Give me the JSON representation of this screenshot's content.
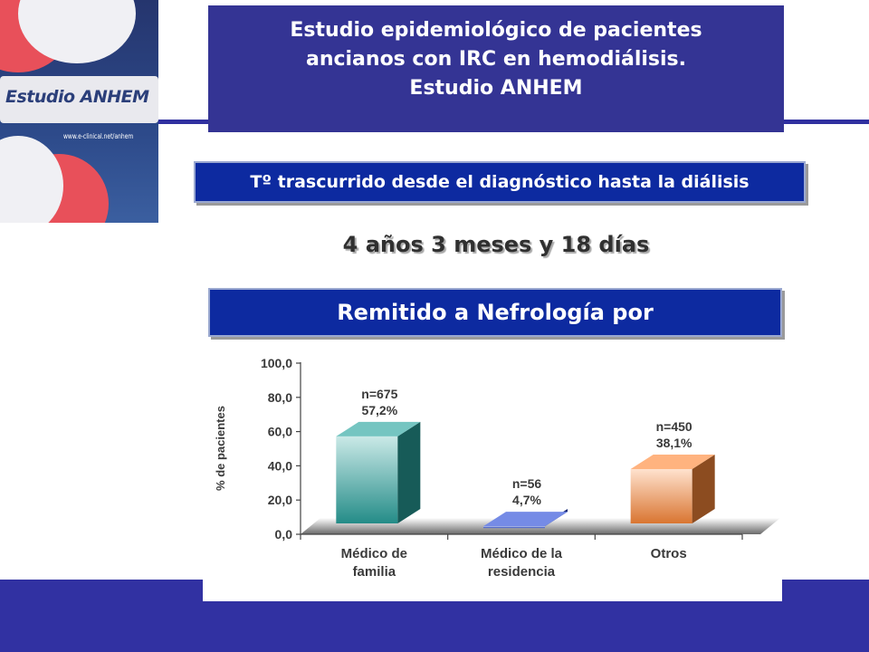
{
  "logo": {
    "title": "Estudio ANHEM",
    "url": "www.e-clinical.net/anhem"
  },
  "title": {
    "line1": "Estudio epidemiológico de pacientes",
    "line2": "ancianos con IRC en hemodiálisis.",
    "line3": "Estudio ANHEM"
  },
  "section1": {
    "header": "Tº trascurrido desde el diagnóstico hasta la diálisis",
    "value": "4 años 3 meses y 18 días"
  },
  "section2": {
    "header": "Remitido a Nefrología por"
  },
  "colors": {
    "title_bg": "#343494",
    "header_bg": "#0d2aa0",
    "footer_bg": "#3131a2"
  },
  "chart_data": {
    "type": "bar",
    "ylabel": "% de pacientes",
    "ylim": [
      0,
      100
    ],
    "yticks": [
      "100,0",
      "80,0",
      "60,0",
      "40,0",
      "20,0",
      "0,0"
    ],
    "categories": [
      [
        "Médico de",
        "familia"
      ],
      [
        "Médico de la",
        "residencia"
      ],
      [
        "Otros"
      ]
    ],
    "values": [
      57.2,
      4.7,
      38.1
    ],
    "counts": [
      "n=675",
      "n=56",
      "n=450"
    ],
    "value_labels": [
      "57,2%",
      "4,7%",
      "38,1%"
    ],
    "colors": [
      "#2aa5a0",
      "#2a4dd8",
      "#ff8a3a"
    ],
    "style": "3d",
    "grid": false
  }
}
